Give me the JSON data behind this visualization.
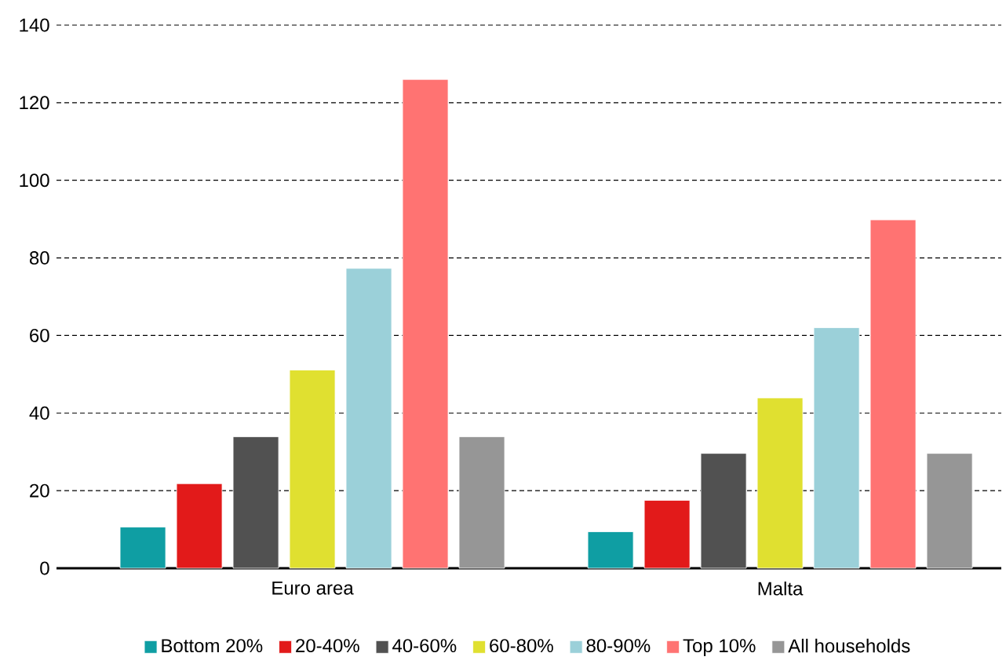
{
  "chart_data": {
    "type": "bar",
    "categories": [
      "Euro area",
      "Malta"
    ],
    "series": [
      {
        "name": "Bottom 20%",
        "color": "#0f9ea3",
        "values": [
          10.6,
          9.4
        ]
      },
      {
        "name": "20-40%",
        "color": "#e21a1a",
        "values": [
          21.8,
          17.5
        ]
      },
      {
        "name": "40-60%",
        "color": "#515151",
        "values": [
          33.9,
          29.6
        ]
      },
      {
        "name": "60-80%",
        "color": "#e0e030",
        "values": [
          51.1,
          43.9
        ]
      },
      {
        "name": "80-90%",
        "color": "#9bd0d9",
        "values": [
          77.3,
          62.0
        ]
      },
      {
        "name": "Top 10%",
        "color": "#ff7372",
        "values": [
          126,
          89.8
        ]
      },
      {
        "name": "All households",
        "color": "#969696",
        "values": [
          33.9,
          29.6
        ]
      }
    ],
    "ylim": [
      0,
      140
    ],
    "yticks": [
      0,
      20,
      40,
      60,
      80,
      100,
      120,
      140
    ],
    "grid": "y",
    "legend": "bottom"
  }
}
